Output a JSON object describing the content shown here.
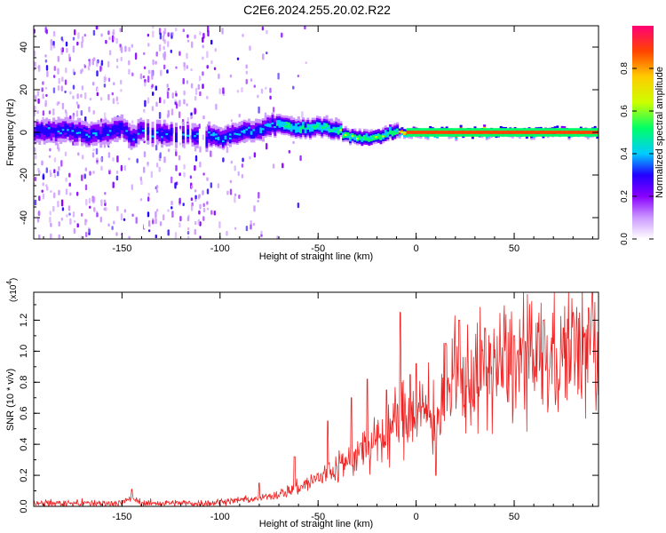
{
  "title": "C2E6.2024.255.20.02.R22",
  "chart_data": [
    {
      "type": "heatmap",
      "xlabel": "Height of straight line (km)",
      "ylabel": "Frequency (Hz)",
      "xlim": [
        -195,
        93
      ],
      "ylim": [
        -50,
        50
      ],
      "x_ticks": [
        -150,
        -100,
        -50,
        0,
        50
      ],
      "x_tick_labels": [
        "-150",
        "-100",
        "-50",
        "0",
        "50"
      ],
      "y_ticks": [
        -40,
        -20,
        0,
        20,
        40
      ],
      "y_tick_labels": [
        "-40",
        "-20",
        "0",
        "20",
        "40"
      ],
      "colorbar": {
        "label": "Normalized spectral amplitude",
        "range": [
          0,
          1
        ],
        "ticks": [
          0.0,
          0.2,
          0.4,
          0.6,
          0.8
        ],
        "tick_labels": [
          "0.0",
          "0.2",
          "0.4",
          "0.6",
          "0.8"
        ],
        "colors": [
          "#ffffff",
          "#cc99ff",
          "#8800ff",
          "#2200ff",
          "#00ccff",
          "#00ff66",
          "#ccff00",
          "#ffcc00",
          "#ff4400",
          "#ff0077"
        ]
      },
      "ridge": {
        "x": [
          -195,
          -180,
          -165,
          -150,
          -145,
          -140,
          -130,
          -120,
          -105,
          -100,
          -90,
          -80,
          -72,
          -65,
          -58,
          -50,
          -42,
          -35,
          -28,
          -20,
          -12,
          -5,
          5,
          20,
          40,
          60,
          80,
          93
        ],
        "y": [
          0,
          1,
          -1,
          2,
          -3,
          1,
          -1,
          0,
          -2,
          -3,
          0,
          1,
          4,
          3,
          2,
          3,
          1,
          -1,
          -3,
          -2,
          0,
          0,
          0,
          0,
          0,
          0,
          0,
          0
        ]
      },
      "grid": false
    },
    {
      "type": "line",
      "xlabel": "Height of straight line (km)",
      "ylabel": "SNR (10 * v/v)",
      "y_scale_label": "(x10",
      "y_scale_exp": "4",
      "y_scale_close": ")",
      "xlim": [
        -195,
        93
      ],
      "ylim": [
        0,
        1.38
      ],
      "x_ticks": [
        -150,
        -100,
        -50,
        0,
        50
      ],
      "x_tick_labels": [
        "-150",
        "-100",
        "-50",
        "0",
        "50"
      ],
      "y_ticks": [
        0.0,
        0.2,
        0.4,
        0.6,
        0.8,
        1.0,
        1.2
      ],
      "y_tick_labels": [
        "0.0",
        "0.2",
        "0.4",
        "0.6",
        "0.8",
        "1.0",
        "1.2"
      ],
      "series": [
        {
          "color": "#ee2222",
          "trend_x": [
            -195,
            -150,
            -145,
            -140,
            -105,
            -100,
            -90,
            -80,
            -70,
            -60,
            -50,
            -40,
            -30,
            -20,
            -15,
            -10,
            -5,
            0,
            5,
            10,
            15,
            20,
            30,
            40,
            50,
            60,
            70,
            80,
            85,
            90,
            93
          ],
          "trend_y": [
            0.02,
            0.02,
            0.06,
            0.02,
            0.02,
            0.03,
            0.04,
            0.05,
            0.08,
            0.12,
            0.18,
            0.25,
            0.33,
            0.4,
            0.45,
            0.55,
            0.6,
            0.62,
            0.6,
            0.55,
            0.7,
            0.78,
            0.85,
            0.9,
            0.92,
            0.94,
            0.93,
            0.95,
            0.98,
            1.0,
            0.9
          ],
          "peaks_x": [
            -145,
            -80,
            -62,
            -45,
            -33,
            -25,
            -15,
            -8,
            -3,
            0,
            10,
            15,
            22,
            35,
            50,
            65,
            70,
            75,
            80,
            88,
            90
          ],
          "peaks_y": [
            0.11,
            0.15,
            0.32,
            0.55,
            0.7,
            0.82,
            0.75,
            1.25,
            0.85,
            0.92,
            0.2,
            1.05,
            1.2,
            1.15,
            1.1,
            1.2,
            1.05,
            1.15,
            1.25,
            1.28,
            1.38
          ]
        }
      ],
      "grid": false
    }
  ]
}
